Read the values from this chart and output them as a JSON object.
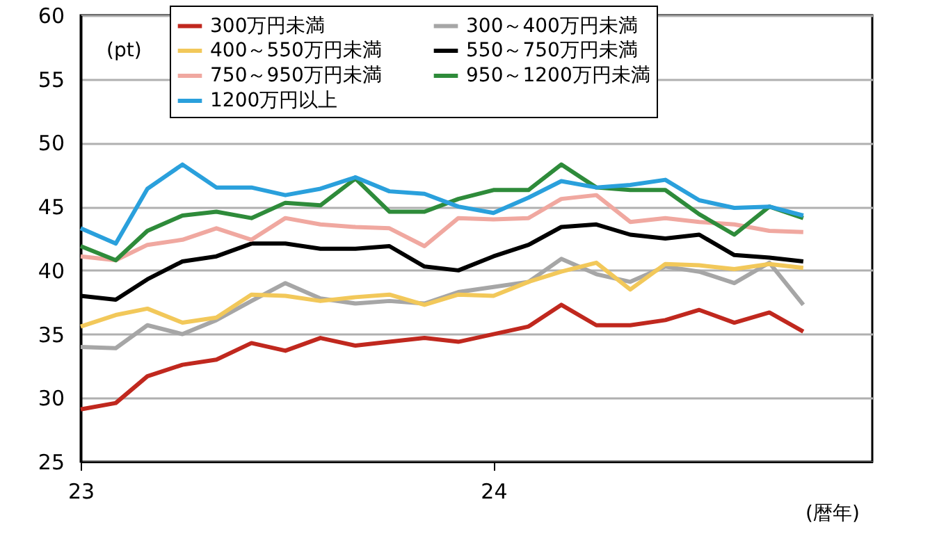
{
  "chart_data": {
    "type": "line",
    "ylabel": "(pt)",
    "xlabel": "(暦年)",
    "x": [
      "2023-01",
      "2023-02",
      "2023-03",
      "2023-04",
      "2023-05",
      "2023-06",
      "2023-07",
      "2023-08",
      "2023-09",
      "2023-10",
      "2023-11",
      "2023-12",
      "2024-01",
      "2024-02",
      "2024-03",
      "2024-04",
      "2024-05",
      "2024-06",
      "2024-07",
      "2024-08",
      "2024-09",
      "2024-10"
    ],
    "xlim": [
      "2023-01",
      "2024-12"
    ],
    "xticks": [
      {
        "value": "2023-01",
        "label": "23"
      },
      {
        "value": "2024-01",
        "label": "24"
      }
    ],
    "ylim": [
      25,
      60
    ],
    "yticks": [
      25,
      30,
      35,
      40,
      45,
      50,
      55,
      60
    ],
    "grid": "y",
    "legend": "top",
    "series": [
      {
        "name": "300万円未満",
        "color": "#c0281e",
        "values": [
          29.1,
          29.6,
          31.7,
          32.6,
          33.0,
          34.3,
          33.7,
          34.7,
          34.1,
          34.4,
          34.7,
          34.4,
          35.0,
          35.6,
          37.3,
          35.7,
          35.7,
          36.1,
          36.9,
          35.9,
          36.7,
          35.2
        ]
      },
      {
        "name": "300～400万円未満",
        "color": "#a6a6a6",
        "values": [
          34.0,
          33.9,
          35.7,
          35.0,
          36.1,
          37.6,
          39.0,
          37.8,
          37.4,
          37.6,
          37.4,
          38.3,
          38.7,
          39.1,
          40.9,
          39.7,
          39.1,
          40.3,
          39.9,
          39.0,
          40.6,
          37.3
        ]
      },
      {
        "name": "400～550万円未満",
        "color": "#f2c85a",
        "values": [
          35.6,
          36.5,
          37.0,
          35.9,
          36.3,
          38.1,
          38.0,
          37.6,
          37.9,
          38.1,
          37.3,
          38.1,
          38.0,
          39.1,
          39.9,
          40.6,
          38.5,
          40.5,
          40.4,
          40.1,
          40.5,
          40.2
        ]
      },
      {
        "name": "550～750万円未満",
        "color": "#000000",
        "values": [
          38.0,
          37.7,
          39.3,
          40.7,
          41.1,
          42.1,
          42.1,
          41.7,
          41.7,
          41.9,
          40.3,
          40.0,
          41.1,
          42.0,
          43.4,
          43.6,
          42.8,
          42.5,
          42.8,
          41.2,
          41.0,
          40.7
        ]
      },
      {
        "name": "750～950万円未満",
        "color": "#f0a8a0",
        "values": [
          41.1,
          40.8,
          42.0,
          42.4,
          43.3,
          42.4,
          44.1,
          43.6,
          43.4,
          43.3,
          41.9,
          44.1,
          44.0,
          44.1,
          45.6,
          45.9,
          43.8,
          44.1,
          43.8,
          43.6,
          43.1,
          43.0
        ]
      },
      {
        "name": "950～1200万円未満",
        "color": "#2e8b3a",
        "values": [
          41.9,
          40.8,
          43.1,
          44.3,
          44.6,
          44.1,
          45.3,
          45.1,
          47.2,
          44.6,
          44.6,
          45.6,
          46.3,
          46.3,
          48.3,
          46.5,
          46.3,
          46.3,
          44.4,
          42.8,
          45.0,
          44.1
        ]
      },
      {
        "name": "1200万円以上",
        "color": "#2aa0dc",
        "values": [
          43.3,
          42.1,
          46.4,
          48.3,
          46.5,
          46.5,
          45.9,
          46.4,
          47.3,
          46.2,
          46.0,
          45.0,
          44.5,
          45.7,
          47.0,
          46.5,
          46.7,
          47.1,
          45.5,
          44.9,
          45.0,
          44.3
        ]
      }
    ]
  }
}
